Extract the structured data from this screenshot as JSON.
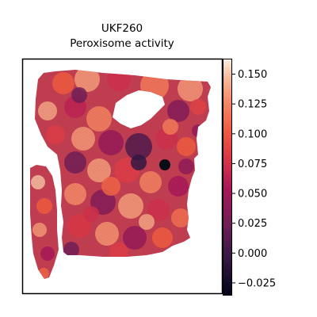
{
  "chart_data": {
    "type": "heatmap",
    "title_line1": "UKF260",
    "title_line2": "Peroxisome activity",
    "colormap": "rocket",
    "colorbar": {
      "min": -0.035,
      "max": 0.163,
      "ticks": [
        -0.025,
        0.0,
        0.025,
        0.05,
        0.075,
        0.1,
        0.125,
        0.15
      ],
      "tick_labels": [
        "−0.025",
        "0.000",
        "0.025",
        "0.050",
        "0.075",
        "0.100",
        "0.125",
        "0.150"
      ]
    },
    "xticks": [],
    "yticks": [],
    "grid": false
  }
}
